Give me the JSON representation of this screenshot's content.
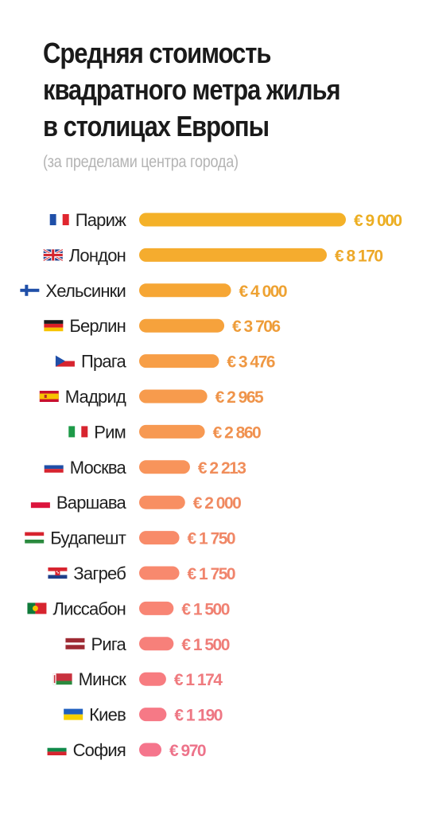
{
  "title_lines": [
    "Средняя стоимость",
    "квадратного метра жилья",
    "в столицах Европы"
  ],
  "subtitle": "(за пределами центра города)",
  "chart_data": {
    "type": "bar",
    "orientation": "horizontal",
    "title": "Средняя стоимость квадратного метра жилья в столицах Европы",
    "subtitle": "(за пределами центра города)",
    "categories": [
      "Париж",
      "Лондон",
      "Хельсинки",
      "Берлин",
      "Прага",
      "Мадрид",
      "Рим",
      "Москва",
      "Варшава",
      "Будапешт",
      "Загреб",
      "Лиссабон",
      "Рига",
      "Минск",
      "Киев",
      "София"
    ],
    "values": [
      9000,
      8170,
      4000,
      3706,
      3476,
      2965,
      2860,
      2213,
      2000,
      1750,
      1750,
      1500,
      1500,
      1174,
      1190,
      970
    ],
    "value_labels": [
      "€ 9 000",
      "€ 8 170",
      "€ 4 000",
      "€ 3 706",
      "€ 3 476",
      "€ 2 965",
      "€ 2 860",
      "€ 2 213",
      "€ 2 000",
      "€ 1 750",
      "€ 1 750",
      "€ 1 500",
      "€ 1 500",
      "€ 1 174",
      "€ 1 190",
      "€ 970"
    ],
    "flags": [
      "france-flag-icon",
      "uk-flag-icon",
      "finland-flag-icon",
      "germany-flag-icon",
      "czech-flag-icon",
      "spain-flag-icon",
      "italy-flag-icon",
      "russia-flag-icon",
      "poland-flag-icon",
      "hungary-flag-icon",
      "croatia-flag-icon",
      "portugal-flag-icon",
      "latvia-flag-icon",
      "belarus-flag-icon",
      "ukraine-flag-icon",
      "bulgaria-flag-icon"
    ],
    "bar_colors": [
      "#f4b128",
      "#f5ac2e",
      "#f6a634",
      "#f6a23c",
      "#f79e46",
      "#f79b4d",
      "#f79952",
      "#f8945b",
      "#f88f62",
      "#f88b69",
      "#f8896e",
      "#f88574",
      "#f7807a",
      "#f77c80",
      "#f67986",
      "#f5758c"
    ],
    "label_colors": [
      "#ecae22",
      "#eda829",
      "#eea232",
      "#ee9d3a",
      "#ef9843",
      "#ef944a",
      "#f0914f",
      "#f08d5a",
      "#f08a61",
      "#f08766",
      "#f0846c",
      "#f08172",
      "#ef7d78",
      "#ef7a7e",
      "#ee7784",
      "#ed738a"
    ],
    "xlabel": "",
    "ylabel": "",
    "grid": false,
    "legend": "none"
  }
}
